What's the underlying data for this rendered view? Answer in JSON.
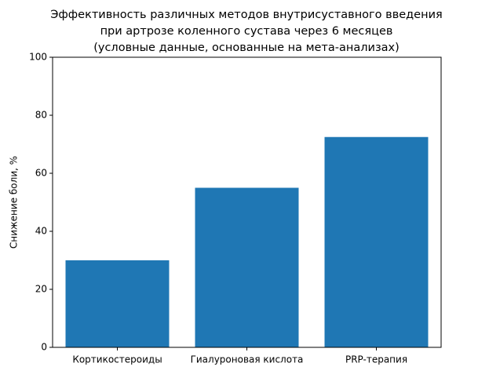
{
  "chart_data": {
    "type": "bar",
    "title": [
      "Эффективность различных методов внутрисуставного введения",
      "при артрозе коленного сустава через 6 месяцев",
      "(условные данные, основанные на мета-анализах)"
    ],
    "y_label": "Снижение боли, %",
    "categories": [
      "Кортикостероиды",
      "Гиалуроновая кислота",
      "PRP-терапия"
    ],
    "values": [
      30,
      55,
      72.5
    ],
    "color": "#1f77b4",
    "ylim": [
      0,
      100
    ],
    "yticks": [
      0,
      20,
      40,
      60,
      80,
      100
    ],
    "grid": false
  }
}
